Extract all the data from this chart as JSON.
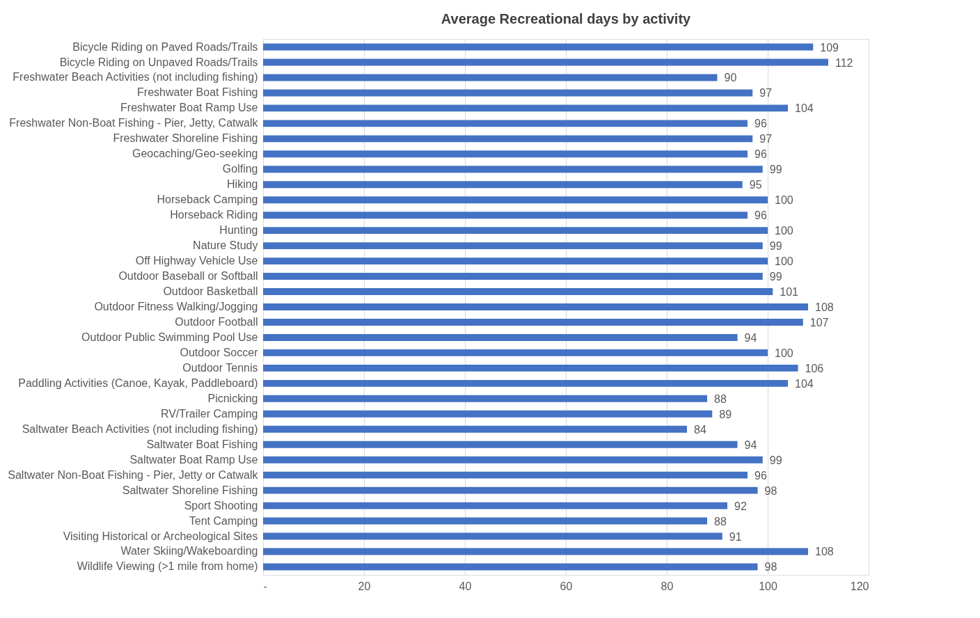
{
  "chart_data": {
    "type": "bar",
    "orientation": "horizontal",
    "title": "Average Recreational days by activity",
    "categories": [
      "Bicycle Riding on Paved Roads/Trails",
      "Bicycle Riding on Unpaved Roads/Trails",
      "Freshwater Beach Activities (not including fishing)",
      "Freshwater Boat Fishing",
      "Freshwater Boat Ramp Use",
      "Freshwater Non-Boat Fishing - Pier, Jetty, Catwalk",
      "Freshwater Shoreline Fishing",
      "Geocaching/Geo-seeking",
      "Golfing",
      "Hiking",
      "Horseback Camping",
      "Horseback Riding",
      "Hunting",
      "Nature Study",
      "Off Highway Vehicle Use",
      "Outdoor Baseball or Softball",
      "Outdoor Basketball",
      "Outdoor Fitness Walking/Jogging",
      "Outdoor Football",
      "Outdoor Public Swimming Pool Use",
      "Outdoor Soccer",
      "Outdoor Tennis",
      "Paddling Activities (Canoe, Kayak, Paddleboard)",
      "Picnicking",
      "RV/Trailer Camping",
      "Saltwater Beach Activities (not including fishing)",
      "Saltwater Boat Fishing",
      "Saltwater Boat Ramp Use",
      "Saltwater Non-Boat Fishing - Pier, Jetty or Catwalk",
      "Saltwater Shoreline Fishing",
      "Sport Shooting",
      "Tent Camping",
      "Visiting Historical or Archeological Sites",
      "Water Skiing/Wakeboarding",
      "Wildlife Viewing (>1 mile from home)"
    ],
    "values": [
      109,
      112,
      90,
      97,
      104,
      96,
      97,
      96,
      99,
      95,
      100,
      96,
      100,
      99,
      100,
      99,
      101,
      108,
      107,
      94,
      100,
      106,
      104,
      88,
      89,
      84,
      94,
      99,
      96,
      98,
      92,
      88,
      91,
      108,
      98
    ],
    "color": "#4472c4",
    "data_labels": true,
    "grid": "x",
    "xlim": [
      0,
      120
    ],
    "xticks": [
      {
        "value": 0,
        "label": "-"
      },
      20,
      40,
      60,
      80,
      100,
      120
    ]
  }
}
